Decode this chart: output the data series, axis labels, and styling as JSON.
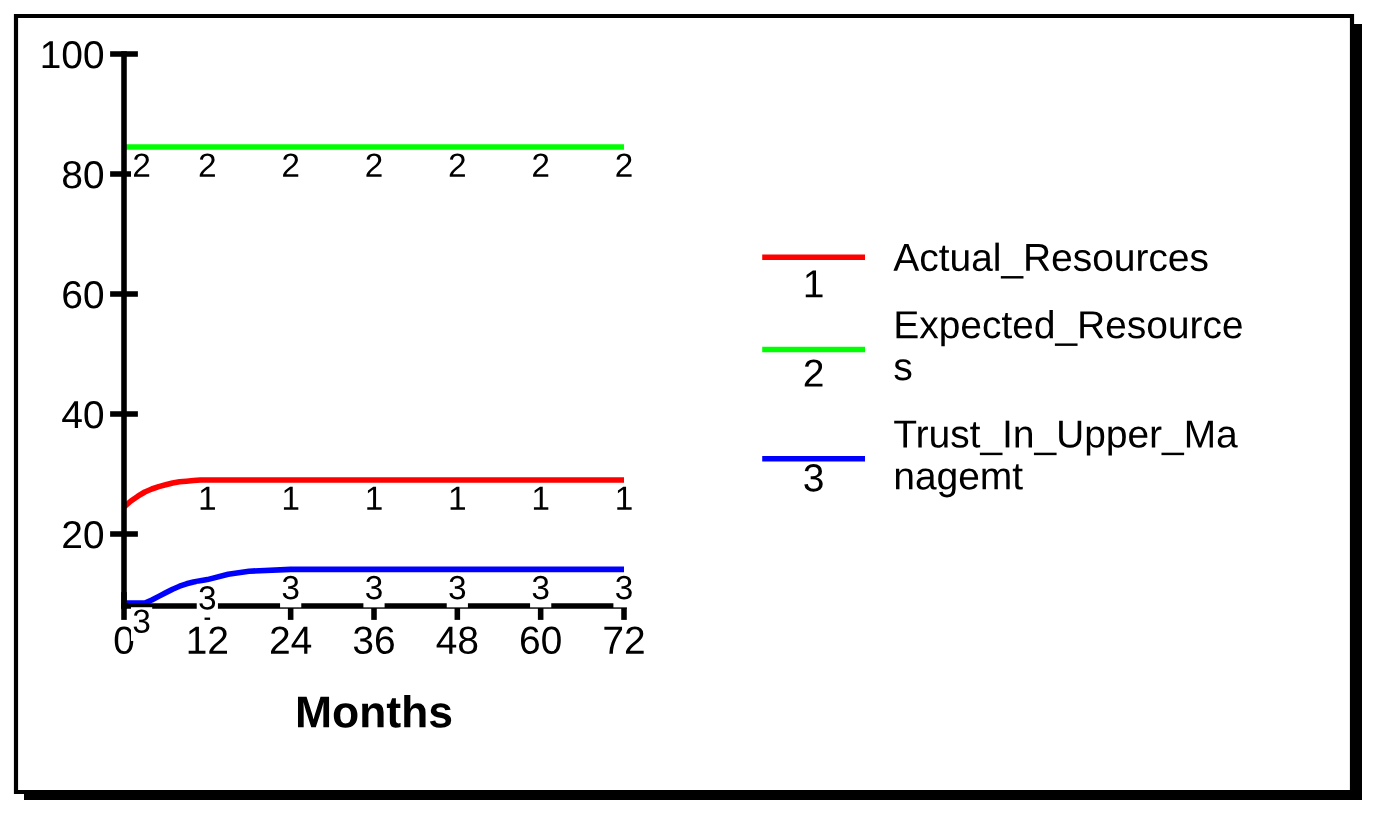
{
  "chart_data": {
    "type": "line",
    "xlabel": "Months",
    "x": [
      0,
      1,
      2,
      3,
      4,
      5,
      6,
      7,
      8,
      9,
      10,
      11,
      12,
      15,
      18,
      24,
      36,
      48,
      60,
      72
    ],
    "xlim": [
      0,
      72
    ],
    "xticks": [
      0,
      12,
      24,
      36,
      48,
      60,
      72
    ],
    "ylim": [
      8,
      100
    ],
    "yticks": [
      20,
      40,
      60,
      80,
      100
    ],
    "series": [
      {
        "name": "Actual_Resources",
        "color": "#ff0000",
        "values": [
          24.5,
          25.5,
          26.3,
          27,
          27.5,
          27.9,
          28.2,
          28.5,
          28.7,
          28.8,
          28.9,
          29,
          29,
          29,
          29,
          29,
          29,
          29,
          29,
          29
        ]
      },
      {
        "name": "Expected_Resources",
        "color": "#00ff00",
        "values": [
          84.5,
          84.5,
          84.5,
          84.5,
          84.5,
          84.5,
          84.5,
          84.5,
          84.5,
          84.5,
          84.5,
          84.5,
          84.5,
          84.5,
          84.5,
          84.5,
          84.5,
          84.5,
          84.5,
          84.5
        ]
      },
      {
        "name": "Trust_In_Upper_Managemt",
        "color": "#0000ff",
        "values": [
          8.5,
          8.5,
          8.5,
          8.5,
          9,
          9.6,
          10.2,
          10.8,
          11.3,
          11.7,
          12,
          12.2,
          12.4,
          13.3,
          13.8,
          14.1,
          14.1,
          14.1,
          14.1,
          14.1
        ]
      }
    ],
    "annotations": [
      {
        "text": "1",
        "x": 12,
        "y": 29
      },
      {
        "text": "1",
        "x": 24,
        "y": 29
      },
      {
        "text": "1",
        "x": 36,
        "y": 29
      },
      {
        "text": "1",
        "x": 48,
        "y": 29
      },
      {
        "text": "1",
        "x": 60,
        "y": 29
      },
      {
        "text": "1",
        "x": 72,
        "y": 29
      },
      {
        "text": "2",
        "x": 0,
        "y": 84.5
      },
      {
        "text": "2",
        "x": 12,
        "y": 84.5
      },
      {
        "text": "2",
        "x": 24,
        "y": 84.5
      },
      {
        "text": "2",
        "x": 36,
        "y": 84.5
      },
      {
        "text": "2",
        "x": 48,
        "y": 84.5
      },
      {
        "text": "2",
        "x": 60,
        "y": 84.5
      },
      {
        "text": "2",
        "x": 72,
        "y": 84.5
      },
      {
        "text": "3",
        "x": 0,
        "y": 8.5
      },
      {
        "text": "3",
        "x": 12,
        "y": 12.4
      },
      {
        "text": "3",
        "x": 24,
        "y": 14.1
      },
      {
        "text": "3",
        "x": 36,
        "y": 14.1
      },
      {
        "text": "3",
        "x": 48,
        "y": 14.1
      },
      {
        "text": "3",
        "x": 60,
        "y": 14.1
      },
      {
        "text": "3",
        "x": 72,
        "y": 14.1
      }
    ],
    "legend": "right",
    "grid": false,
    "marker": "none",
    "line_style": "solid"
  }
}
